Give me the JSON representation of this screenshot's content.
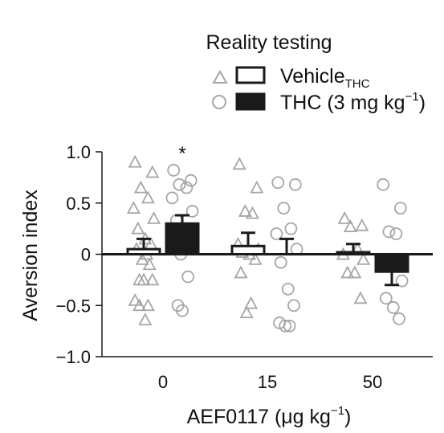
{
  "chart_data": {
    "type": "bar",
    "title": "Reality testing",
    "xlabel": "AEF0117 (μg kg",
    "xlabel_sup": "−1",
    "xlabel_end": ")",
    "ylabel": "Aversion index",
    "ylim": [
      -1.0,
      1.0
    ],
    "yticks": [
      {
        "value": -1.0,
        "label": "−1.0"
      },
      {
        "value": -0.5,
        "label": "−0.5"
      },
      {
        "value": 0,
        "label": "0"
      },
      {
        "value": 0.5,
        "label": "0.5"
      },
      {
        "value": 1.0,
        "label": "1.0"
      }
    ],
    "categories": [
      "0",
      "15",
      "50"
    ],
    "legend": {
      "placement": "top-right",
      "entries": [
        {
          "label": "Vehicle",
          "sub": "THC",
          "sup": ""
        },
        {
          "label": "THC (3 mg kg",
          "sub": "",
          "sup": "−1",
          "end": ")"
        }
      ]
    },
    "annotation": "*",
    "colors": {
      "bar_edge": "#1a1a1a",
      "thc_fill": "#1a1a1a",
      "vehicle_fill": "#ffffff",
      "point": "#a6a6a6"
    },
    "series": [
      {
        "name": "Vehicle",
        "marker": "triangle",
        "values": [
          0.05,
          0.08,
          0.02
        ],
        "sem": [
          0.1,
          0.13,
          0.08
        ],
        "points": [
          [
            0.9,
            0.8,
            0.65,
            0.55,
            0.45,
            0.35,
            0.25,
            0.15,
            0.1,
            0.05,
            0.0,
            -0.05,
            -0.1,
            -0.25,
            -0.25,
            -0.25,
            -0.45,
            -0.5,
            -0.5,
            -0.64
          ],
          [
            0.88,
            0.65,
            0.42,
            0.4,
            0.1,
            0.05,
            0.02,
            0.0,
            -0.05,
            -0.18,
            -0.48,
            -0.57
          ],
          [
            0.35,
            0.28,
            0.27,
            0.05,
            0.0,
            -0.05,
            -0.18,
            -0.18,
            -0.43
          ]
        ]
      },
      {
        "name": "THC (3 mg kg−1)",
        "marker": "circle",
        "values": [
          0.3,
          0.0,
          -0.17
        ],
        "sem": [
          0.08,
          0.15,
          0.13
        ],
        "points": [
          [
            0.82,
            0.72,
            0.68,
            0.65,
            0.55,
            0.42,
            0.33,
            0.25,
            0.18,
            0.12,
            0.05,
            0.0,
            -0.22,
            -0.5,
            -0.55
          ],
          [
            0.7,
            0.68,
            0.45,
            0.25,
            0.2,
            0.05,
            -0.08,
            -0.34,
            -0.5,
            -0.67,
            -0.7,
            -0.7
          ],
          [
            0.68,
            0.45,
            0.22,
            0.2,
            -0.05,
            -0.26,
            -0.43,
            -0.52,
            -0.63
          ]
        ]
      }
    ]
  }
}
